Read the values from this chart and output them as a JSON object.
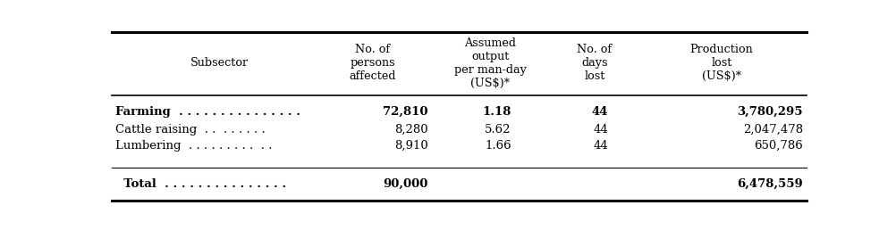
{
  "col_headers": [
    "Subsector",
    "No. of\npersons\naffected",
    "Assumed\noutput\nper man-day\n(US$)*",
    "No. of\ndays\nlost",
    "Production\nlost\n(US$)*"
  ],
  "rows": [
    [
      "Farming  . . . . . . . . . . . . . . .",
      "72,810",
      "1.18",
      "44",
      "3,780,295"
    ],
    [
      "Cattle raising  . .  . . . . . .",
      "8,280",
      "5.62",
      "44",
      "2,047,478"
    ],
    [
      "Lumbering  . . . . . . . . .  . .",
      "8,910",
      "1.66",
      "44",
      "650,786"
    ],
    [
      "  Total  . . . . . . . . . . . . . . .",
      "90,000",
      "",
      "",
      "6,478,559"
    ]
  ],
  "row_bold": [
    true,
    false,
    false,
    true
  ],
  "bg_color": "#ffffff",
  "line_color": "#000000",
  "font_size": 9.5,
  "header_font_size": 9.2
}
